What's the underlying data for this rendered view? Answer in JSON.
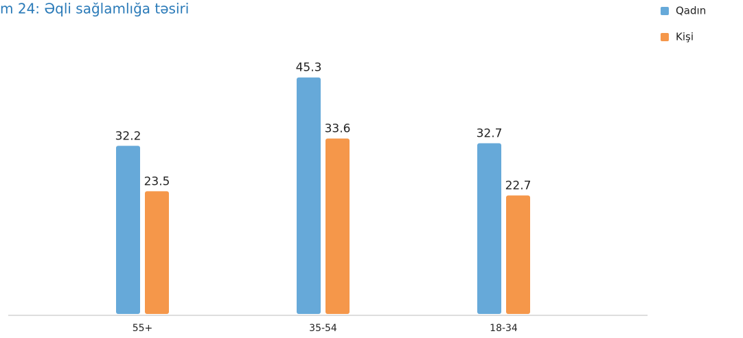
{
  "chart_data": {
    "type": "bar",
    "title": "m 24: Əqli sağlamlığa təsiri",
    "categories": [
      "55+",
      "35-54",
      "18-34"
    ],
    "series": [
      {
        "name": "Qadın",
        "color": "#66a9d9",
        "values": [
          32.2,
          45.3,
          32.7
        ]
      },
      {
        "name": "Kişi",
        "color": "#f5974a",
        "values": [
          23.5,
          33.6,
          22.7
        ]
      }
    ],
    "ylim": [
      0,
      50
    ],
    "grid": false,
    "legend": "top-right"
  }
}
